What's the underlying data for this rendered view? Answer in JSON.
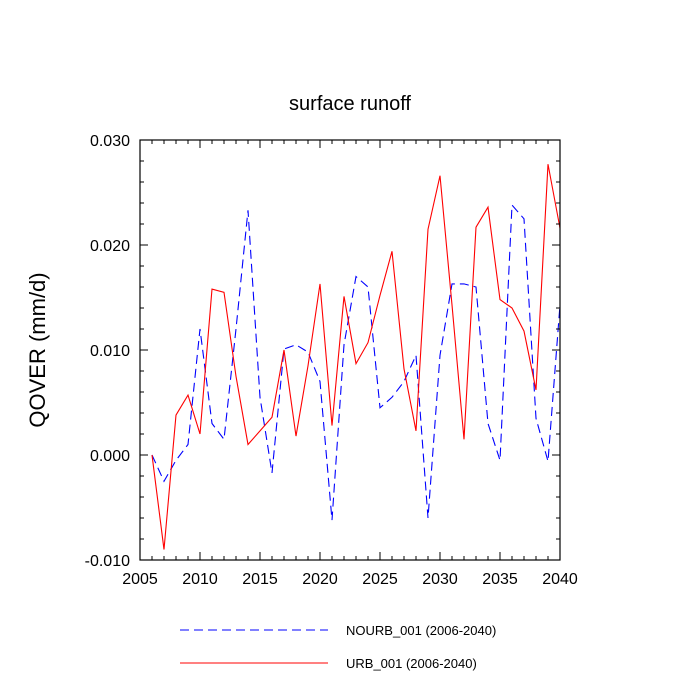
{
  "chart_data": {
    "type": "line",
    "title": "surface runoff",
    "xlabel": "",
    "ylabel": "QOVER  (mm/d)",
    "xlim": [
      2005,
      2040
    ],
    "ylim": [
      -0.01,
      0.03
    ],
    "x_ticks": [
      2005,
      2010,
      2015,
      2020,
      2025,
      2030,
      2035,
      2040
    ],
    "x_tick_labels": [
      "2005",
      "2010",
      "2015",
      "2020",
      "2025",
      "2030",
      "2035",
      "2040"
    ],
    "y_ticks": [
      -0.01,
      0.0,
      0.01,
      0.02,
      0.03
    ],
    "y_tick_labels": [
      "-0.010",
      "0.000",
      "0.010",
      "0.020",
      "0.030"
    ],
    "grid": false,
    "legend_position": "bottom",
    "x": [
      2006,
      2007,
      2008,
      2009,
      2010,
      2011,
      2012,
      2013,
      2014,
      2015,
      2016,
      2017,
      2018,
      2019,
      2020,
      2021,
      2022,
      2023,
      2024,
      2025,
      2026,
      2027,
      2028,
      2029,
      2030,
      2031,
      2032,
      2033,
      2034,
      2035,
      2036,
      2037,
      2038,
      2039,
      2040
    ],
    "series": [
      {
        "name": "NOURB_001 (2006-2040)",
        "color": "#0000ff",
        "style": "dashed",
        "values": [
          0.0,
          -0.0025,
          -0.0005,
          0.001,
          0.012,
          0.003,
          0.0015,
          0.012,
          0.0233,
          0.0055,
          -0.0017,
          0.0101,
          0.0105,
          0.0098,
          0.007,
          -0.0062,
          0.0105,
          0.017,
          0.016,
          0.0045,
          0.0055,
          0.007,
          0.0095,
          -0.006,
          0.0095,
          0.0163,
          0.0163,
          0.016,
          0.003,
          -0.0005,
          0.0238,
          0.0225,
          0.0035,
          -0.0006,
          0.0143
        ]
      },
      {
        "name": "URB_001 (2006-2040)",
        "color": "#ff0000",
        "style": "solid",
        "values": [
          0.0,
          -0.009,
          0.0038,
          0.0057,
          0.002,
          0.0158,
          0.0155,
          0.0075,
          0.001,
          0.0023,
          0.0036,
          0.01,
          0.0018,
          0.0085,
          0.0163,
          0.0028,
          0.0151,
          0.0087,
          0.0107,
          0.0152,
          0.0194,
          0.0082,
          0.0023,
          0.0215,
          0.0266,
          0.0143,
          0.0015,
          0.0217,
          0.0236,
          0.0148,
          0.014,
          0.0118,
          0.0062,
          0.0277,
          0.0216
        ]
      }
    ]
  }
}
